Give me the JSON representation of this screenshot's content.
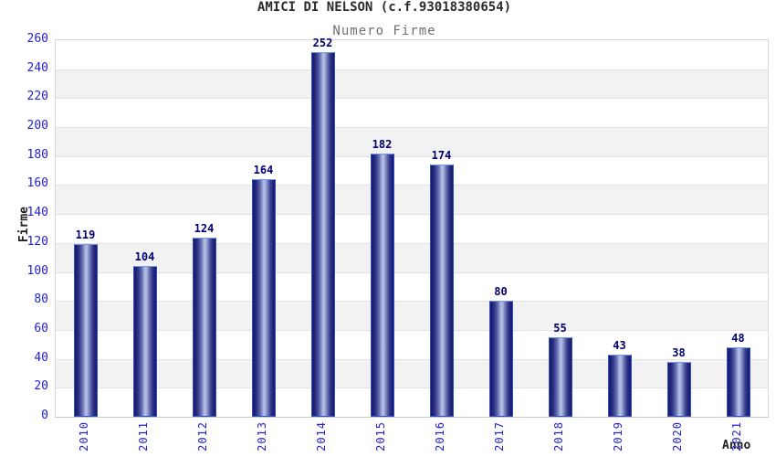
{
  "chart_data": {
    "type": "bar",
    "title": "AMICI DI NELSON (c.f.93018380654)",
    "subtitle": "Numero Firme",
    "xlabel": "Anno",
    "ylabel": "Firme",
    "categories": [
      "2010",
      "2011",
      "2012",
      "2013",
      "2014",
      "2015",
      "2016",
      "2017",
      "2018",
      "2019",
      "2020",
      "2021"
    ],
    "values": [
      119,
      104,
      124,
      164,
      252,
      182,
      174,
      80,
      55,
      43,
      38,
      48
    ],
    "ylim": [
      0,
      260
    ],
    "ytick_step": 20,
    "ytick_labels": [
      "0",
      "20",
      "40",
      "60",
      "80",
      "100",
      "120",
      "140",
      "160",
      "180",
      "200",
      "220",
      "240",
      "260"
    ],
    "grid": "horizontal-bands-alternating",
    "legend": "none",
    "colors": {
      "tick_label_blue": "#2323cd",
      "value_label_navy": "#000070",
      "bar_dark": "#1b1b6c",
      "bar_light_center": "#b7c0e8",
      "bar_border": "#3050c8",
      "bar_border_top": "#6f9bea",
      "band_gray": "#f2f2f2",
      "band_white": "#ffffff",
      "gridline": "#e2e2e2",
      "title_color": "#2b2b2b",
      "subtitle_color": "#6f6f6f",
      "axis_title_color": "#222222",
      "background": "#ffffff"
    }
  }
}
